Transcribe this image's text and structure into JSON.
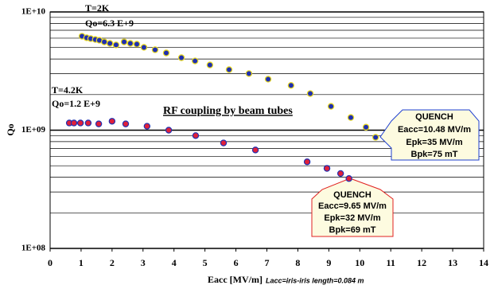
{
  "chart_data": {
    "type": "scatter",
    "xlabel": "Eacc [MV/m]",
    "xlabel_note": "Lacc=iris-iris length=0.084 m",
    "ylabel": "Qo",
    "xlim": [
      0,
      14
    ],
    "xticks": [
      0,
      1,
      2,
      3,
      4,
      5,
      6,
      7,
      8,
      9,
      10,
      11,
      12,
      13,
      14
    ],
    "ylim": [
      100000000,
      10000000000
    ],
    "log_y": true,
    "grid": true,
    "yticks": [
      {
        "value": 100000000,
        "label": "1E+08"
      },
      {
        "value": 1000000000,
        "label": "1E+09"
      },
      {
        "value": 10000000000,
        "label": "1E+10"
      }
    ],
    "yminor_ticks": [
      200000000,
      300000000,
      400000000,
      500000000,
      600000000,
      700000000,
      800000000,
      900000000,
      2000000000,
      3000000000,
      4000000000,
      5000000000,
      6000000000,
      7000000000,
      8000000000,
      9000000000
    ],
    "series": [
      {
        "name": "T=2K",
        "color": "#1f2fb0",
        "edgecolor": "#e8d820",
        "x": [
          1.03,
          1.18,
          1.31,
          1.46,
          1.59,
          1.75,
          1.93,
          2.13,
          2.39,
          2.59,
          2.8,
          3.03,
          3.39,
          3.75,
          4.24,
          4.68,
          5.16,
          5.78,
          6.42,
          7.04,
          7.78,
          8.4,
          9.07,
          9.71,
          10.2,
          10.51
        ],
        "values": [
          6230000000,
          6050000000,
          5950000000,
          5850000000,
          5760000000,
          5580000000,
          5420000000,
          5260000000,
          5580000000,
          5420000000,
          5340000000,
          5020000000,
          4790000000,
          4500000000,
          4100000000,
          3850000000,
          3560000000,
          3250000000,
          3010000000,
          2700000000,
          2390000000,
          2040000000,
          1590000000,
          1280000000,
          1060000000,
          870000000
        ]
      },
      {
        "name": "T=4.2K",
        "color": "#e0203a",
        "edgecolor": "#2030b0",
        "x": [
          0.62,
          0.77,
          0.98,
          1.23,
          1.57,
          2.0,
          2.44,
          3.13,
          3.83,
          4.7,
          5.6,
          6.63,
          8.3,
          8.94,
          9.38,
          9.65
        ],
        "values": [
          1150000000,
          1150000000,
          1150000000,
          1150000000,
          1130000000,
          1190000000,
          1130000000,
          1080000000,
          1000000000,
          900000000,
          780000000,
          680000000,
          540000000,
          475000000,
          430000000,
          390000000
        ]
      }
    ],
    "annotations": [
      "Qo=6.3 E+9",
      "Qo=1.2 E+9",
      "RF coupling by beam tubes"
    ],
    "callouts": [
      {
        "lines": [
          "QUENCH",
          "Eacc=10.48 MV/m",
          "Epk=35 MV/m",
          "Bpk=75 mT"
        ],
        "color": "#2040d0"
      },
      {
        "lines": [
          "QUENCH",
          "Eacc=9.65 MV/m",
          "Epk=32 MV/m",
          "Bpk=69 mT"
        ],
        "color": "#e02020"
      }
    ]
  }
}
